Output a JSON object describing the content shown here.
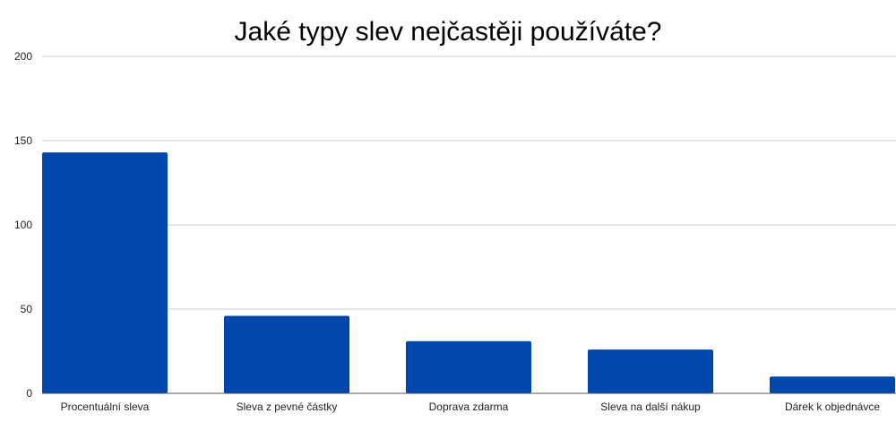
{
  "chart_data": {
    "type": "bar",
    "title": "Jaké typy slev nejčastěji používáte?",
    "xlabel": "",
    "ylabel": "",
    "categories": [
      "Procentuální sleva",
      "Sleva z pevné částky",
      "Doprava zdarma",
      "Sleva na další nákup",
      "Dárek k objednávce"
    ],
    "values": [
      143,
      46,
      31,
      26,
      10
    ],
    "ylim": [
      0,
      200
    ],
    "yticks": [
      0,
      50,
      100,
      150,
      200
    ],
    "grid": true,
    "legend": "none",
    "bar_color": "#0047ab"
  }
}
